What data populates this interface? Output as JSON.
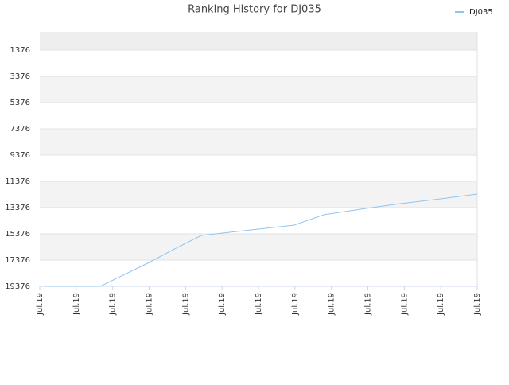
{
  "chart_data": {
    "type": "line",
    "title": "Ranking History for DJ035",
    "x": [
      0.15,
      1.66,
      3.0,
      3.7,
      4.43,
      6.98,
      7.79,
      8.95,
      9.9,
      11.0,
      12.0
    ],
    "series": [
      {
        "name": "DJ035",
        "color": "#90c4f0",
        "values": [
          19376,
          19376,
          17558,
          16527,
          15497,
          14709,
          13921,
          13436,
          13073,
          12709,
          12346
        ]
      }
    ],
    "xlim": [
      0,
      12
    ],
    "xticks": [
      {
        "value": 0,
        "label": "Jul.19"
      },
      {
        "value": 1,
        "label": "Jul.19"
      },
      {
        "value": 2,
        "label": "Jul.19"
      },
      {
        "value": 3,
        "label": "Jul.19"
      },
      {
        "value": 4,
        "label": "Jul.19"
      },
      {
        "value": 5,
        "label": "Jul.19"
      },
      {
        "value": 6,
        "label": "Jul.19"
      },
      {
        "value": 7,
        "label": "Jul.19"
      },
      {
        "value": 8,
        "label": "Jul.19"
      },
      {
        "value": 9,
        "label": "Jul.19"
      },
      {
        "value": 10,
        "label": "Jul.19"
      },
      {
        "value": 11,
        "label": "Jul.19"
      },
      {
        "value": 12,
        "label": "Jul.19"
      }
    ],
    "ylim": [
      19376,
      -18
    ],
    "yticks": [
      1376,
      3376,
      5376,
      7376,
      9376,
      11376,
      13376,
      15376,
      17376,
      19376
    ],
    "grid": true,
    "legend": "top-right"
  }
}
